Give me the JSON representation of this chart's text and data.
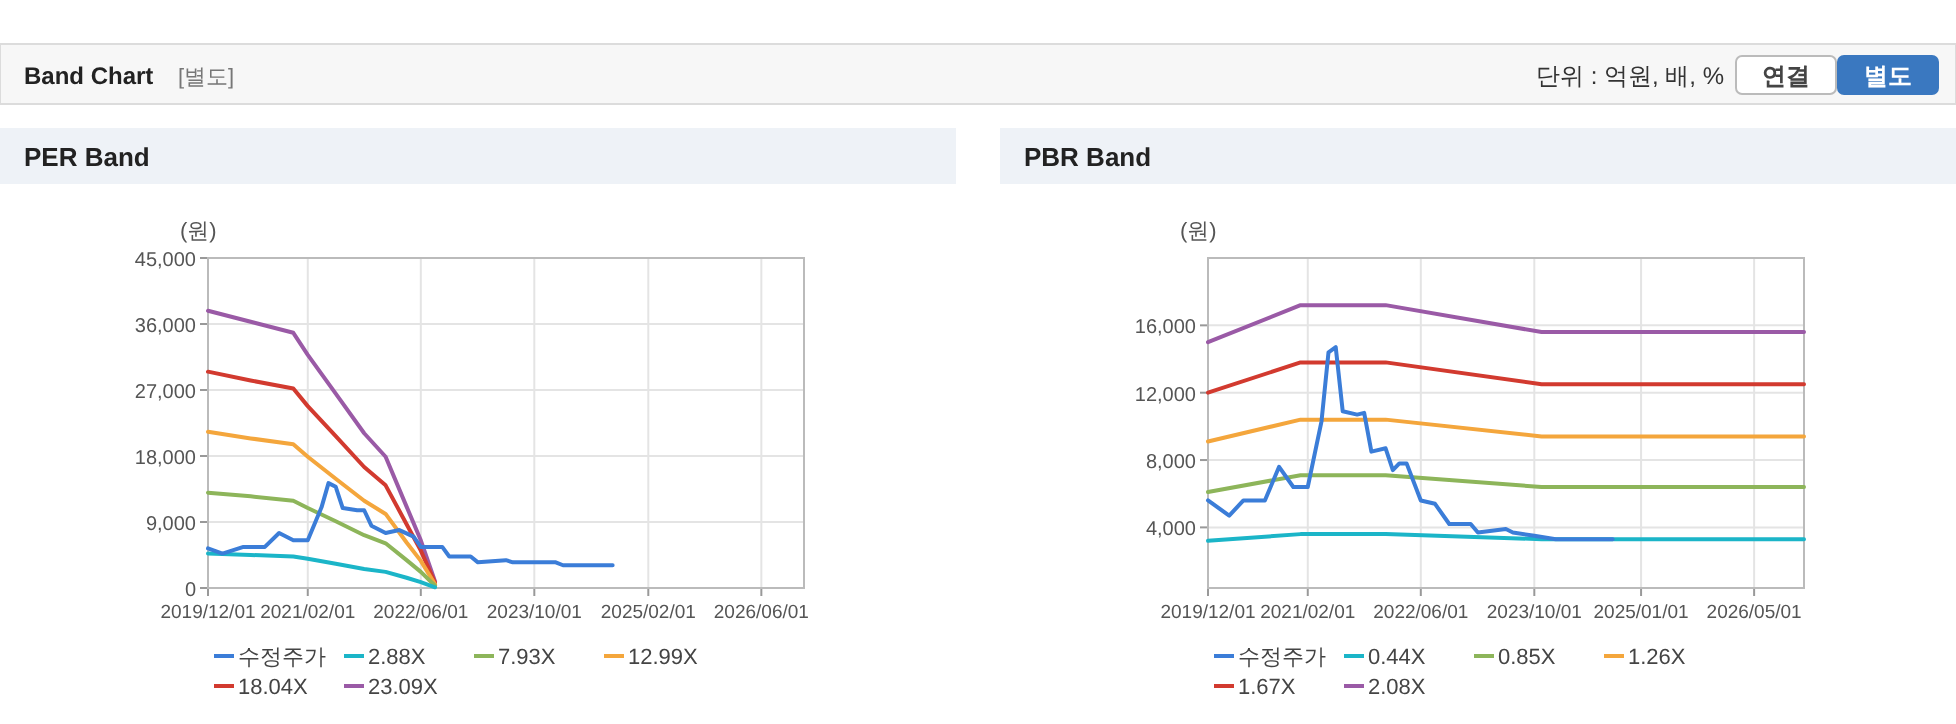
{
  "chart_data": [
    {
      "type": "other",
      "title": "Band Chart",
      "subtitle": "[별도]",
      "annotations": [
        "단위 : 억원, 배, %",
        "연결",
        "별도"
      ]
    },
    {
      "type": "line",
      "title": "PER Band",
      "ylabel": "(원)",
      "legend": "bottom",
      "grid": true,
      "marker": "none",
      "line_style": "solid",
      "xlim": [
        "2019-12-01",
        "2026-12-01"
      ],
      "xticks": [
        {
          "value": "2019-12-01",
          "label": "2019/12/01"
        },
        {
          "value": "2021-02-01",
          "label": "2021/02/01"
        },
        {
          "value": "2022-06-01",
          "label": "2022/06/01"
        },
        {
          "value": "2023-10-01",
          "label": "2023/10/01"
        },
        {
          "value": "2025-02-01",
          "label": "2025/02/01"
        },
        {
          "value": "2026-06-01",
          "label": "2026/06/01"
        }
      ],
      "ylim": [
        0,
        45000
      ],
      "yticks": [
        {
          "value": 0,
          "label": "0"
        },
        {
          "value": 9000,
          "label": "9,000"
        },
        {
          "value": 18000,
          "label": "18,000"
        },
        {
          "value": 27000,
          "label": "27,000"
        },
        {
          "value": 36000,
          "label": "36,000"
        },
        {
          "value": 45000,
          "label": "45,000"
        }
      ],
      "series": [
        {
          "name": "수정주가",
          "color": "#3b7dd8",
          "x": [
            "2019-12",
            "2020-02",
            "2020-05",
            "2020-08",
            "2020-10",
            "2020-12",
            "2021-02",
            "2021-04",
            "2021-05",
            "2021-06",
            "2021-07",
            "2021-09",
            "2021-10",
            "2021-11",
            "2022-01",
            "2022-03",
            "2022-05",
            "2022-06",
            "2022-09",
            "2022-10",
            "2023-01",
            "2023-02",
            "2023-06",
            "2023-07",
            "2024-01",
            "2024-02",
            "2024-09"
          ],
          "values": [
            5400,
            4700,
            5600,
            5600,
            7500,
            6500,
            6500,
            11000,
            14300,
            13800,
            10900,
            10600,
            10600,
            8500,
            7500,
            7900,
            7000,
            5600,
            5600,
            4300,
            4300,
            3500,
            3800,
            3500,
            3500,
            3100,
            3100
          ]
        },
        {
          "name": "2.88X",
          "color": "#1bb5c8",
          "x": [
            "2019-12",
            "2020-06",
            "2020-12",
            "2021-02",
            "2021-06",
            "2021-10",
            "2022-01",
            "2022-04",
            "2022-06",
            "2022-08"
          ],
          "values": [
            4700,
            4500,
            4300,
            4000,
            3300,
            2600,
            2200,
            1400,
            800,
            100
          ]
        },
        {
          "name": "7.93X",
          "color": "#8db55a",
          "x": [
            "2019-12",
            "2020-06",
            "2020-12",
            "2021-02",
            "2021-06",
            "2021-10",
            "2022-01",
            "2022-04",
            "2022-06",
            "2022-08"
          ],
          "values": [
            13000,
            12500,
            11900,
            10900,
            9100,
            7200,
            6100,
            3800,
            2200,
            300
          ]
        },
        {
          "name": "12.99X",
          "color": "#f4a63c",
          "x": [
            "2019-12",
            "2020-06",
            "2020-12",
            "2021-02",
            "2021-06",
            "2021-10",
            "2022-01",
            "2022-04",
            "2022-06",
            "2022-08"
          ],
          "values": [
            21300,
            20400,
            19600,
            17900,
            14900,
            11900,
            10100,
            6200,
            3700,
            500
          ]
        },
        {
          "name": "18.04X",
          "color": "#d23a2f",
          "x": [
            "2019-12",
            "2020-06",
            "2020-12",
            "2021-02",
            "2021-06",
            "2021-10",
            "2022-01",
            "2022-04",
            "2022-06",
            "2022-08"
          ],
          "values": [
            29500,
            28300,
            27200,
            24800,
            20700,
            16500,
            14000,
            8700,
            5100,
            700
          ]
        },
        {
          "name": "23.09X",
          "color": "#9a5aa6",
          "x": [
            "2019-12",
            "2020-06",
            "2020-12",
            "2021-02",
            "2021-06",
            "2021-10",
            "2022-01",
            "2022-04",
            "2022-06",
            "2022-08"
          ],
          "values": [
            37800,
            36300,
            34800,
            31800,
            26500,
            21100,
            17900,
            11100,
            6500,
            900
          ]
        }
      ]
    },
    {
      "type": "line",
      "title": "PBR Band",
      "ylabel": "(원)",
      "legend": "bottom",
      "grid": true,
      "marker": "none",
      "line_style": "solid",
      "xlim": [
        "2019-12-01",
        "2026-12-01"
      ],
      "xticks": [
        {
          "value": "2019-12-01",
          "label": "2019/12/01"
        },
        {
          "value": "2021-02-01",
          "label": "2021/02/01"
        },
        {
          "value": "2022-06-01",
          "label": "2022/06/01"
        },
        {
          "value": "2023-10-01",
          "label": "2023/10/01"
        },
        {
          "value": "2025-01-01",
          "label": "2025/01/01"
        },
        {
          "value": "2026-05-01",
          "label": "2026/05/01"
        }
      ],
      "ylim": [
        400,
        20000
      ],
      "yticks": [
        {
          "value": 4000,
          "label": "4,000"
        },
        {
          "value": 8000,
          "label": "8,000"
        },
        {
          "value": 12000,
          "label": "12,000"
        },
        {
          "value": 16000,
          "label": "16,000"
        }
      ],
      "series": [
        {
          "name": "수정주가",
          "color": "#3b7dd8",
          "x": [
            "2019-12",
            "2020-03",
            "2020-05",
            "2020-08",
            "2020-10",
            "2020-12",
            "2021-02",
            "2021-04",
            "2021-05",
            "2021-06",
            "2021-07",
            "2021-09",
            "2021-10",
            "2021-11",
            "2022-01",
            "2022-02",
            "2022-03",
            "2022-04",
            "2022-06",
            "2022-08",
            "2022-10",
            "2023-01",
            "2023-02",
            "2023-06",
            "2023-07",
            "2023-10",
            "2024-01",
            "2024-09"
          ],
          "values": [
            5600,
            4700,
            5600,
            5600,
            7600,
            6400,
            6400,
            10300,
            14400,
            14700,
            10900,
            10700,
            10800,
            8500,
            8700,
            7400,
            7800,
            7800,
            5600,
            5400,
            4200,
            4200,
            3700,
            3900,
            3700,
            3500,
            3300,
            3300
          ]
        },
        {
          "name": "0.44X",
          "color": "#1bb5c8",
          "x": [
            "2019-12",
            "2021-01",
            "2022-01",
            "2023-11",
            "2026-12"
          ],
          "values": [
            3200,
            3600,
            3600,
            3300,
            3300
          ]
        },
        {
          "name": "0.85X",
          "color": "#8db55a",
          "x": [
            "2019-12",
            "2021-01",
            "2022-01",
            "2023-11",
            "2026-12"
          ],
          "values": [
            6100,
            7100,
            7100,
            6400,
            6400
          ]
        },
        {
          "name": "1.26X",
          "color": "#f4a63c",
          "x": [
            "2019-12",
            "2021-01",
            "2022-01",
            "2023-11",
            "2026-12"
          ],
          "values": [
            9100,
            10400,
            10400,
            9400,
            9400
          ]
        },
        {
          "name": "1.67X",
          "color": "#d23a2f",
          "x": [
            "2019-12",
            "2021-01",
            "2022-01",
            "2023-11",
            "2026-12"
          ],
          "values": [
            12000,
            13800,
            13800,
            12500,
            12500
          ]
        },
        {
          "name": "2.08X",
          "color": "#9a5aa6",
          "x": [
            "2019-12",
            "2021-01",
            "2022-01",
            "2023-11",
            "2026-12"
          ],
          "values": [
            15000,
            17200,
            17200,
            15600,
            15600
          ]
        }
      ]
    }
  ]
}
